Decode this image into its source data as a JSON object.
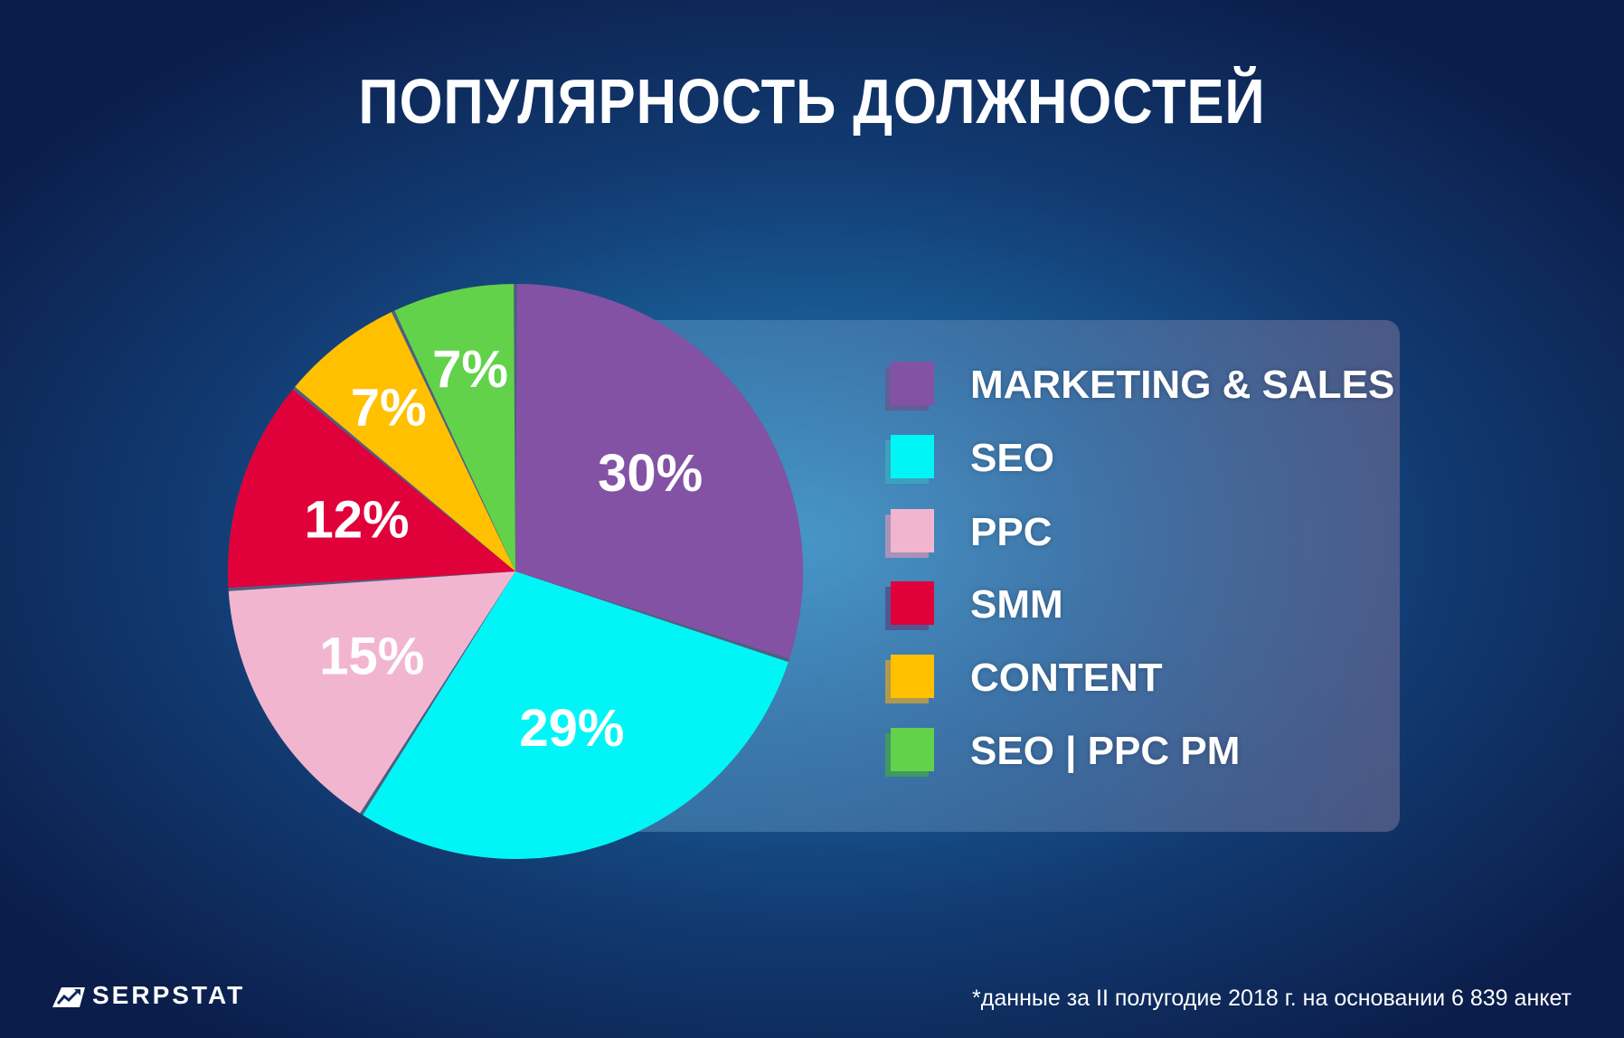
{
  "chart_data": {
    "type": "pie",
    "title": "ПОПУЛЯРНОСТЬ ДОЛЖНОСТЕЙ",
    "slices": [
      {
        "name": "MARKETING & SALES",
        "value": 30,
        "label": "30%",
        "color": "#8352a5",
        "shadow": "#5b3578"
      },
      {
        "name": "SEO",
        "value": 29,
        "label": "29%",
        "color": "#00f6f6",
        "shadow": "#1aa9b8"
      },
      {
        "name": "PPC",
        "value": 15,
        "label": "15%",
        "color": "#f2b5d0",
        "shadow": "#d48fb2"
      },
      {
        "name": "SMM",
        "value": 12,
        "label": "12%",
        "color": "#e0003a",
        "shadow": "#3a2a70"
      },
      {
        "name": "CONTENT",
        "value": 7,
        "label": "7%",
        "color": "#ffc000",
        "shadow": "#e39a00"
      },
      {
        "name": "SEO | PPC PM",
        "value": 7,
        "label": "7%",
        "color": "#62d24a",
        "shadow": "#1c9a1c"
      }
    ],
    "legend_placement": "right"
  },
  "branding": {
    "logo_text": "SERPSTAT",
    "logo_icon": "serpstat-logo-icon"
  },
  "footnote": "*данные за II полугодие 2018 г. на основании 6 839 анкет"
}
